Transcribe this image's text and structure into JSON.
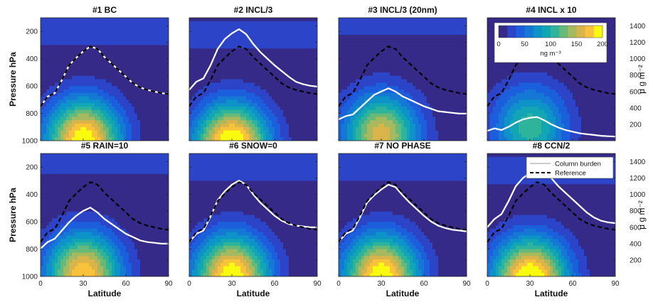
{
  "chart_data": {
    "type": "filled-contour",
    "x_label": "Latitude",
    "y_label": "Pressure hPa",
    "x_ticks": [
      "0",
      "30",
      "60",
      "90"
    ],
    "xlim": [
      0,
      90
    ],
    "y_ticks": [
      "200",
      "400",
      "600",
      "800",
      "1000"
    ],
    "ylim": [
      100,
      1000
    ],
    "y_reversed": true,
    "right_axis_label": "μ g m⁻²",
    "right_ticks": [
      "200",
      "400",
      "600",
      "800",
      "1000",
      "1200",
      "1400"
    ],
    "right_lim": [
      0,
      1500
    ],
    "colorbar": {
      "ticks": [
        "0",
        "50",
        "100",
        "150",
        "200"
      ],
      "range": [
        0,
        200
      ],
      "unit": "ng m⁻³",
      "colors": [
        "#352a87",
        "#2c45c8",
        "#1b5fdd",
        "#1478d4",
        "#0d93c8",
        "#12a6b4",
        "#2eb49a",
        "#67b97a",
        "#a6b95e",
        "#d9b44a",
        "#f8c33a",
        "#f9fb0e"
      ]
    },
    "legend": {
      "placement": "top-right of panel 8",
      "entries": [
        {
          "label": "Column burden",
          "color": "#ffffff",
          "style": "solid"
        },
        {
          "label": "Reference",
          "color": "#000000",
          "style": "dashed"
        }
      ]
    },
    "reference_x": [
      0,
      5,
      10,
      15,
      20,
      25,
      30,
      35,
      40,
      45,
      50,
      55,
      60,
      65,
      70,
      75,
      80,
      85,
      90
    ],
    "reference_burden": [
      420,
      540,
      580,
      740,
      920,
      1010,
      1090,
      1150,
      1120,
      1020,
      940,
      860,
      780,
      700,
      650,
      620,
      600,
      580,
      570
    ],
    "panels": [
      {
        "title": "#1 BC",
        "scale": 1.0,
        "shift": 0,
        "burden": [
          420,
          540,
          580,
          740,
          920,
          1010,
          1090,
          1150,
          1120,
          1020,
          940,
          860,
          780,
          700,
          650,
          620,
          600,
          580,
          570
        ]
      },
      {
        "title": "#2 INCL/3",
        "scale": 1.05,
        "shift": -30,
        "burden": [
          620,
          720,
          760,
          920,
          1120,
          1240,
          1310,
          1360,
          1300,
          1180,
          1080,
          1000,
          920,
          850,
          780,
          720,
          690,
          670,
          660
        ]
      },
      {
        "title": "#3 INCL/3 (20nm)",
        "scale": 0.8,
        "shift": 40,
        "burden": [
          260,
          300,
          320,
          400,
          480,
          560,
          600,
          640,
          600,
          540,
          500,
          460,
          420,
          390,
          360,
          350,
          340,
          330,
          330
        ]
      },
      {
        "title": "#4 INCL x 10",
        "scale": 0.55,
        "shift": 100,
        "burden": [
          120,
          150,
          130,
          170,
          220,
          260,
          280,
          290,
          250,
          200,
          160,
          130,
          110,
          90,
          80,
          70,
          60,
          55,
          50
        ]
      },
      {
        "title": "#5 RAIN=10",
        "scale": 0.9,
        "shift": 20,
        "burden": [
          340,
          420,
          460,
          560,
          660,
          740,
          800,
          840,
          780,
          700,
          640,
          580,
          520,
          480,
          440,
          420,
          410,
          400,
          400
        ]
      },
      {
        "title": "#6 SNOW=0",
        "scale": 1.0,
        "shift": 0,
        "burden": [
          420,
          520,
          560,
          730,
          930,
          1040,
          1120,
          1170,
          1120,
          1000,
          900,
          820,
          740,
          680,
          640,
          620,
          610,
          600,
          600
        ]
      },
      {
        "title": "#7 NO PHASE",
        "scale": 1.0,
        "shift": 0,
        "burden": [
          420,
          520,
          560,
          720,
          900,
          990,
          1060,
          1120,
          1090,
          990,
          900,
          820,
          740,
          670,
          620,
          590,
          570,
          560,
          550
        ]
      },
      {
        "title": "#8 CCN/2",
        "scale": 1.05,
        "shift": -20,
        "burden": [
          600,
          700,
          760,
          920,
          1100,
          1200,
          1260,
          1300,
          1280,
          1200,
          1100,
          1020,
          940,
          860,
          780,
          720,
          680,
          660,
          650
        ]
      }
    ]
  }
}
